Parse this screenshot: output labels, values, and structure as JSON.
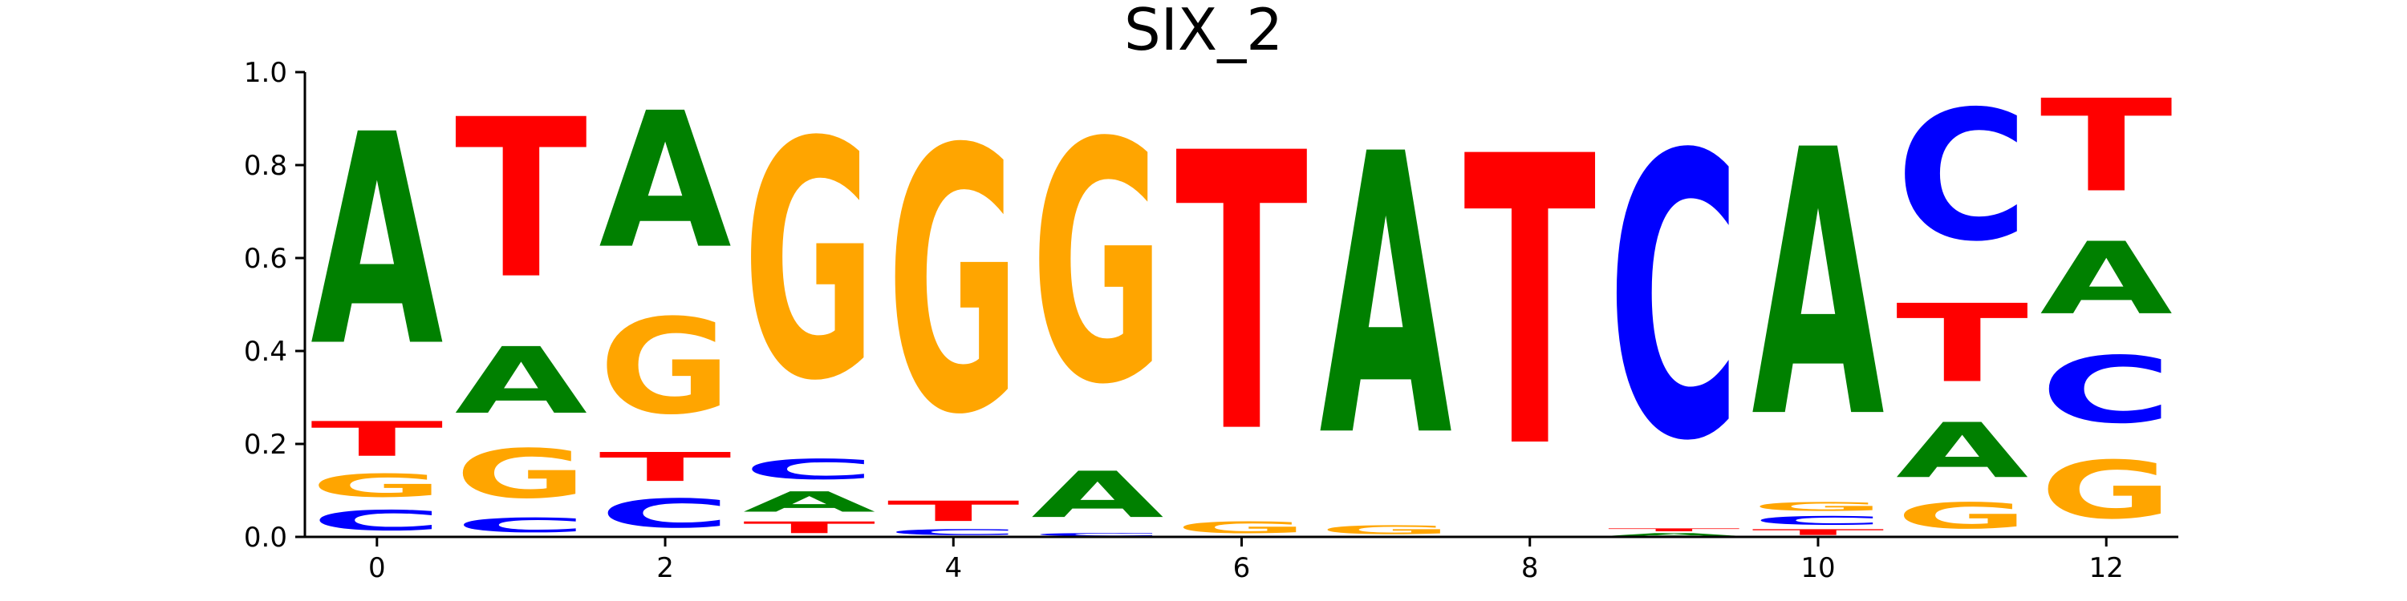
{
  "chart_data": {
    "type": "sequence_logo",
    "title": "SIX_2",
    "xlabel": "",
    "ylabel": "",
    "ylim": [
      0,
      1.0
    ],
    "xlim": [
      -0.5,
      12.5
    ],
    "x_ticks": [
      0,
      2,
      4,
      6,
      8,
      10,
      12
    ],
    "y_ticks": [
      "0.0",
      "0.2",
      "0.4",
      "0.6",
      "0.8",
      "1.0"
    ],
    "colors": {
      "A": "#008000",
      "C": "#0000ff",
      "G": "#ffa500",
      "T": "#ff0000"
    },
    "positions": [
      {
        "pos": 0,
        "stack": [
          {
            "base": "C",
            "h": 0.07
          },
          {
            "base": "G",
            "h": 0.08
          },
          {
            "base": "T",
            "h": 0.12
          },
          {
            "base": "A",
            "h": 0.73
          }
        ]
      },
      {
        "pos": 1,
        "stack": [
          {
            "base": "C",
            "h": 0.05
          },
          {
            "base": "G",
            "h": 0.17
          },
          {
            "base": "A",
            "h": 0.23
          },
          {
            "base": "T",
            "h": 0.55
          }
        ]
      },
      {
        "pos": 2,
        "stack": [
          {
            "base": "C",
            "h": 0.1
          },
          {
            "base": "T",
            "h": 0.1
          },
          {
            "base": "G",
            "h": 0.33
          },
          {
            "base": "A",
            "h": 0.47
          }
        ]
      },
      {
        "pos": 3,
        "stack": [
          {
            "base": "T",
            "h": 0.04
          },
          {
            "base": "A",
            "h": 0.07
          },
          {
            "base": "C",
            "h": 0.07
          },
          {
            "base": "G",
            "h": 0.82
          }
        ]
      },
      {
        "pos": 4,
        "stack": [
          {
            "base": "C",
            "h": 0.02
          },
          {
            "base": "T",
            "h": 0.07
          },
          {
            "base": "G",
            "h": 0.91
          }
        ]
      },
      {
        "pos": 5,
        "stack": [
          {
            "base": "C",
            "h": 0.01
          },
          {
            "base": "A",
            "h": 0.16
          },
          {
            "base": "G",
            "h": 0.83
          }
        ]
      },
      {
        "pos": 6,
        "stack": [
          {
            "base": "G",
            "h": 0.04
          },
          {
            "base": "T",
            "h": 0.96
          }
        ]
      },
      {
        "pos": 7,
        "stack": [
          {
            "base": "G",
            "h": 0.03
          },
          {
            "base": "A",
            "h": 0.97
          }
        ]
      },
      {
        "pos": 8,
        "stack": [
          {
            "base": "T",
            "h": 1.0
          }
        ]
      },
      {
        "pos": 9,
        "stack": [
          {
            "base": "A",
            "h": 0.01
          },
          {
            "base": "T",
            "h": 0.01
          },
          {
            "base": "C",
            "h": 0.98
          }
        ]
      },
      {
        "pos": 10,
        "stack": [
          {
            "base": "T",
            "h": 0.02
          },
          {
            "base": "C",
            "h": 0.03
          },
          {
            "base": "G",
            "h": 0.03
          },
          {
            "base": "A",
            "h": 0.92
          }
        ]
      },
      {
        "pos": 11,
        "stack": [
          {
            "base": "G",
            "h": 0.09
          },
          {
            "base": "A",
            "h": 0.19
          },
          {
            "base": "T",
            "h": 0.27
          },
          {
            "base": "C",
            "h": 0.45
          }
        ]
      },
      {
        "pos": 12,
        "stack": [
          {
            "base": "G",
            "h": 0.2
          },
          {
            "base": "C",
            "h": 0.23
          },
          {
            "base": "A",
            "h": 0.25
          },
          {
            "base": "T",
            "h": 0.32
          }
        ]
      }
    ]
  }
}
